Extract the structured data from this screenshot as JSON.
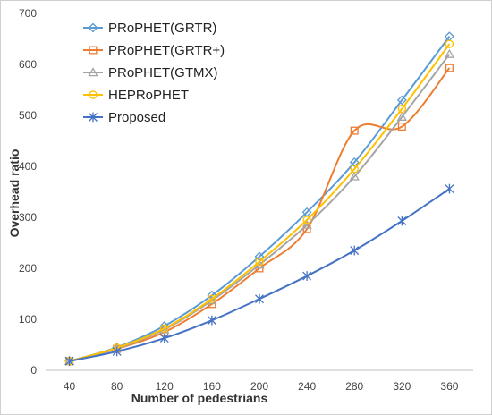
{
  "chart_data": {
    "type": "line",
    "title": "",
    "xlabel": "Number of pedestrians",
    "ylabel": "Overhead ratio",
    "x": [
      40,
      80,
      120,
      160,
      200,
      240,
      280,
      320,
      360
    ],
    "ylim": [
      0,
      700
    ],
    "yticks": [
      0,
      100,
      200,
      300,
      400,
      500,
      600,
      700
    ],
    "grid": false,
    "legend_position": "top-left",
    "series": [
      {
        "name": "PRoPHET(GRTR)",
        "color": "#5b9bd5",
        "marker": "diamond",
        "values": [
          18,
          45,
          87,
          147,
          223,
          310,
          408,
          530,
          655
        ]
      },
      {
        "name": "PRoPHET(GRTR+)",
        "color": "#ed7d31",
        "marker": "square",
        "values": [
          18,
          42,
          75,
          130,
          200,
          277,
          470,
          478,
          593
        ]
      },
      {
        "name": "PRoPHET(GTMX)",
        "color": "#a5a5a5",
        "marker": "triangle",
        "values": [
          18,
          43,
          80,
          137,
          207,
          285,
          380,
          497,
          620
        ]
      },
      {
        "name": "HEPRoPHET",
        "color": "#ffc000",
        "marker": "circle",
        "values": [
          18,
          44,
          82,
          140,
          213,
          295,
          395,
          513,
          640
        ]
      },
      {
        "name": "Proposed",
        "color": "#4472c4",
        "marker": "star",
        "values": [
          18,
          37,
          63,
          98,
          140,
          185,
          235,
          293,
          356
        ]
      }
    ]
  }
}
